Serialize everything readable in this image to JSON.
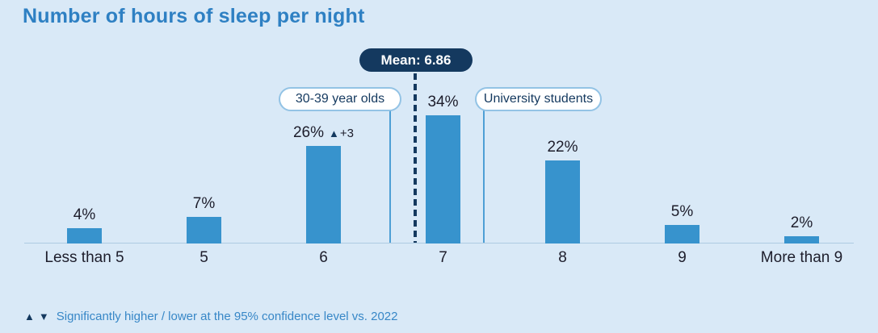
{
  "title": "Number of hours of sleep per night",
  "chart_data": {
    "type": "bar",
    "title": "Number of hours of sleep per night",
    "categories": [
      "Less than 5",
      "5",
      "6",
      "7",
      "8",
      "9",
      "More than 9"
    ],
    "values": [
      4,
      7,
      26,
      34,
      22,
      5,
      2
    ],
    "value_labels": [
      "4%",
      "7%",
      "26%",
      "34%",
      "22%",
      "5%",
      "2%"
    ],
    "unit": "%",
    "ylim": [
      0,
      40
    ],
    "grid": false,
    "legend": "none",
    "markers": [
      null,
      null,
      {
        "symbol": "▲",
        "text": "+3"
      },
      null,
      null,
      null,
      null
    ],
    "mean": {
      "label": "Mean: 6.86",
      "value": 6.86
    },
    "annotations": [
      {
        "label": "30-39 year olds"
      },
      {
        "label": "University students"
      }
    ]
  },
  "footnote": {
    "up_symbol": "▲",
    "down_symbol": "▼",
    "text": "Significantly higher / lower at the 95% confidence level vs. 2022"
  },
  "colors": {
    "background": "#D9E9F7",
    "title": "#2E80C3",
    "bar": "#3793CD",
    "navy": "#14395F",
    "pill_border": "#93C3E5",
    "annotation_line": "#4E9FD5",
    "baseline": "#AECBE2",
    "label_text": "#1D1D2B",
    "footnote_text": "#3787C7"
  }
}
